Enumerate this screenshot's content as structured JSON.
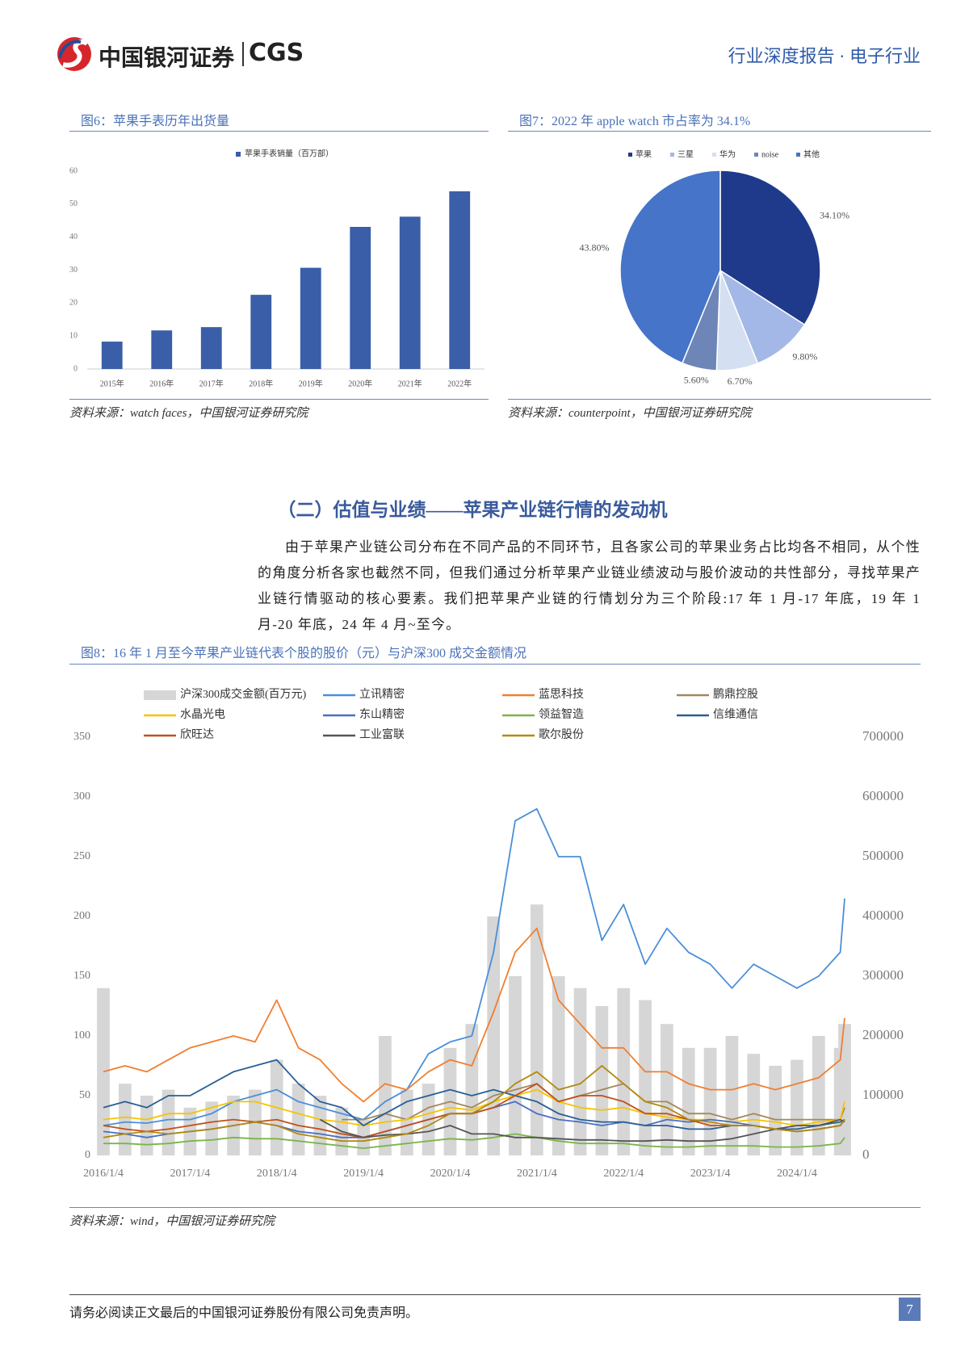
{
  "header": {
    "logo_text": "中国银河证券",
    "logo_brand": "CGS",
    "report_type": "行业深度报告 · 电子行业"
  },
  "chart_data": [
    {
      "type": "bar",
      "title": "图6：苹果手表历年出货量",
      "source": "资料来源：watch faces，中国银河证券研究院",
      "categories": [
        "2015年",
        "2016年",
        "2017年",
        "2018年",
        "2019年",
        "2020年",
        "2021年",
        "2022年"
      ],
      "series": [
        {
          "name": "苹果手表销量（百万部）",
          "color": "#3a5ea8",
          "values": [
            8.3,
            11.7,
            12.7,
            22.5,
            30.7,
            43.1,
            46.2,
            53.9
          ]
        }
      ],
      "ylim": [
        0,
        60
      ],
      "yticks": [
        0,
        10,
        20,
        30,
        40,
        50,
        60
      ],
      "grid": false
    },
    {
      "type": "pie",
      "title": "图7：2022 年 apple watch 市占率为 34.1%",
      "source": "资料来源：counterpoint，中国银河证券研究院",
      "labels": [
        "苹果",
        "三星",
        "华为",
        "noise",
        "其他"
      ],
      "values": [
        34.1,
        9.8,
        6.7,
        5.6,
        43.8
      ],
      "value_labels": [
        "34.10%",
        "9.80%",
        "6.70%",
        "5.60%",
        "43.80%"
      ],
      "colors": [
        "#1f3a8a",
        "#a3b8e6",
        "#d5dff2",
        "#6e85b8",
        "#4674c8"
      ]
    },
    {
      "type": "line",
      "title": "图8：16 年 1 月至今苹果产业链代表个股的股价（元）与沪深300 成交金额情况",
      "source": "资料来源：wind，中国银河证券研究院",
      "x": [
        2016.0,
        2016.25,
        2016.5,
        2016.75,
        2017.0,
        2017.25,
        2017.5,
        2017.75,
        2018.0,
        2018.25,
        2018.5,
        2018.75,
        2019.0,
        2019.25,
        2019.5,
        2019.75,
        2020.0,
        2020.25,
        2020.5,
        2020.75,
        2021.0,
        2021.25,
        2021.5,
        2021.75,
        2022.0,
        2022.25,
        2022.5,
        2022.75,
        2023.0,
        2023.25,
        2023.5,
        2023.75,
        2024.0,
        2024.25,
        2024.5,
        2024.55
      ],
      "xlim": [
        2016.0,
        2024.55
      ],
      "xticks": [
        {
          "value": 2016,
          "label": "2016/1/4"
        },
        {
          "value": 2017,
          "label": "2017/1/4"
        },
        {
          "value": 2018,
          "label": "2018/1/4"
        },
        {
          "value": 2019,
          "label": "2019/1/4"
        },
        {
          "value": 2020,
          "label": "2020/1/4"
        },
        {
          "value": 2021,
          "label": "2021/1/4"
        },
        {
          "value": 2022,
          "label": "2022/1/4"
        },
        {
          "value": 2023,
          "label": "2023/1/4"
        },
        {
          "value": 2024,
          "label": "2024/1/4"
        }
      ],
      "ylim": [
        0,
        350
      ],
      "yticks": [
        0,
        50,
        100,
        150,
        200,
        250,
        300,
        350
      ],
      "y2lim": [
        0,
        700000
      ],
      "y2ticks": [
        0,
        100000,
        200000,
        300000,
        400000,
        500000,
        600000,
        700000
      ],
      "grid": false,
      "series": [
        {
          "name": "沪深300成交金额(百万元)",
          "color": "#d6d6d6",
          "type": "bar",
          "axis": "y2",
          "values": [
            280000,
            120000,
            100000,
            110000,
            80000,
            90000,
            100000,
            110000,
            160000,
            120000,
            100000,
            80000,
            60000,
            200000,
            110000,
            120000,
            180000,
            220000,
            400000,
            300000,
            420000,
            300000,
            280000,
            250000,
            280000,
            260000,
            220000,
            180000,
            180000,
            200000,
            170000,
            150000,
            160000,
            200000,
            180000,
            220000
          ]
        },
        {
          "name": "立讯精密",
          "color": "#4a8fd9",
          "values": [
            25,
            28,
            27,
            30,
            30,
            35,
            45,
            50,
            55,
            45,
            40,
            35,
            30,
            45,
            55,
            85,
            95,
            100,
            170,
            280,
            290,
            250,
            250,
            180,
            210,
            160,
            190,
            170,
            160,
            140,
            160,
            150,
            140,
            150,
            170,
            215
          ]
        },
        {
          "name": "蓝思科技",
          "color": "#f07f30",
          "values": [
            70,
            75,
            70,
            80,
            90,
            95,
            100,
            95,
            130,
            90,
            80,
            60,
            45,
            60,
            55,
            70,
            80,
            75,
            120,
            170,
            190,
            130,
            110,
            90,
            90,
            70,
            70,
            60,
            55,
            55,
            60,
            55,
            60,
            65,
            80,
            115
          ]
        },
        {
          "name": "鹏鼎控股",
          "color": "#a5875a",
          "values": [
            null,
            null,
            null,
            null,
            null,
            null,
            null,
            null,
            null,
            null,
            null,
            30,
            30,
            35,
            30,
            40,
            45,
            40,
            50,
            55,
            60,
            45,
            50,
            55,
            60,
            45,
            45,
            35,
            35,
            30,
            35,
            30,
            30,
            30,
            30,
            40
          ]
        },
        {
          "name": "水晶光电",
          "color": "#f5c400",
          "values": [
            30,
            32,
            30,
            35,
            35,
            40,
            45,
            45,
            40,
            35,
            30,
            28,
            25,
            28,
            30,
            35,
            40,
            38,
            45,
            50,
            55,
            45,
            40,
            38,
            40,
            35,
            32,
            30,
            30,
            28,
            30,
            28,
            25,
            28,
            30,
            45
          ]
        },
        {
          "name": "东山精密",
          "color": "#4a6fc4",
          "values": [
            20,
            18,
            15,
            18,
            20,
            22,
            25,
            28,
            25,
            20,
            18,
            15,
            15,
            20,
            25,
            30,
            35,
            35,
            40,
            45,
            35,
            30,
            28,
            25,
            28,
            25,
            30,
            28,
            30,
            28,
            25,
            22,
            20,
            22,
            25,
            30
          ]
        },
        {
          "name": "领益智造",
          "color": "#7bb54a",
          "values": [
            10,
            10,
            9,
            10,
            12,
            13,
            15,
            14,
            14,
            12,
            10,
            8,
            6,
            8,
            10,
            12,
            14,
            13,
            15,
            18,
            15,
            12,
            10,
            10,
            10,
            8,
            7,
            7,
            8,
            8,
            8,
            7,
            7,
            8,
            10,
            15
          ]
        },
        {
          "name": "信维通信",
          "color": "#2a5f95",
          "values": [
            40,
            45,
            40,
            50,
            50,
            60,
            70,
            75,
            80,
            60,
            45,
            40,
            25,
            35,
            45,
            50,
            55,
            50,
            55,
            50,
            45,
            35,
            30,
            28,
            28,
            25,
            25,
            22,
            22,
            25,
            25,
            22,
            22,
            25,
            28,
            30
          ]
        },
        {
          "name": "欣旺达",
          "color": "#c0501a",
          "values": [
            25,
            22,
            20,
            22,
            25,
            28,
            30,
            28,
            30,
            25,
            22,
            18,
            15,
            20,
            25,
            30,
            35,
            35,
            40,
            50,
            60,
            45,
            50,
            50,
            45,
            35,
            35,
            30,
            25,
            25,
            25,
            22,
            20,
            22,
            25,
            30
          ]
        },
        {
          "name": "工业富联",
          "color": "#555555",
          "values": [
            null,
            null,
            null,
            null,
            null,
            null,
            null,
            null,
            null,
            null,
            30,
            20,
            15,
            17,
            18,
            20,
            25,
            18,
            18,
            15,
            15,
            14,
            13,
            13,
            12,
            12,
            13,
            12,
            12,
            14,
            18,
            22,
            25,
            25,
            30,
            28
          ]
        },
        {
          "name": "歌尔股份",
          "color": "#b08a10",
          "values": [
            15,
            18,
            20,
            18,
            20,
            22,
            25,
            28,
            25,
            18,
            15,
            12,
            12,
            15,
            18,
            25,
            35,
            35,
            45,
            60,
            70,
            55,
            60,
            75,
            60,
            45,
            40,
            30,
            28,
            25,
            25,
            22,
            20,
            22,
            25,
            30
          ]
        }
      ]
    }
  ],
  "section": {
    "heading": "（二）估值与业绩——苹果产业链行情的发动机",
    "paragraph": "由于苹果产业链公司分布在不同产品的不同环节，且各家公司的苹果业务占比均各不相同，从个性的角度分析各家也截然不同，但我们通过分析苹果产业链业绩波动与股价波动的共性部分，寻找苹果产业链行情驱动的核心要素。我们把苹果产业链的行情划分为三个阶段:17 年 1 月-17 年底，19 年 1 月-20 年底，24 年 4 月~至今。"
  },
  "footer": {
    "disclaimer": "请务必阅读正文最后的中国银河证券股份有限公司免责声明。",
    "page_number": 7
  }
}
